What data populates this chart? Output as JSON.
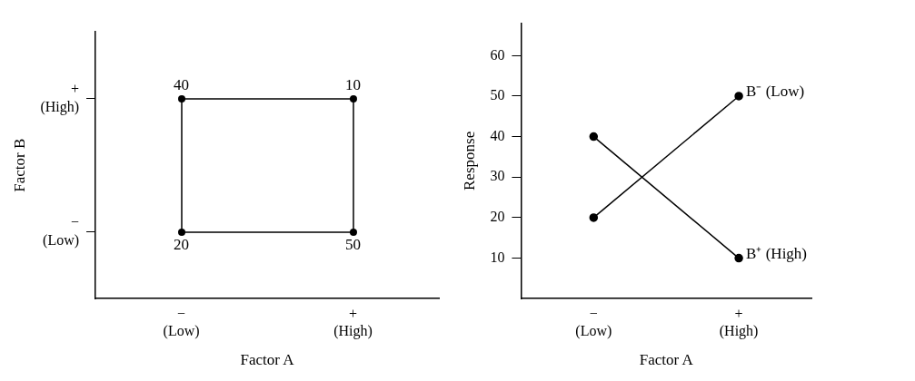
{
  "chart_data": [
    {
      "type": "other",
      "categories": [
        "− (Low)",
        "+ (High)"
      ],
      "y_categories": [
        "+ (High)",
        "− (Low)"
      ],
      "annotations": [
        {
          "text": "40",
          "x": "− (Low)",
          "y": "+ (High)"
        },
        {
          "text": "10",
          "x": "+ (High)",
          "y": "+ (High)"
        },
        {
          "text": "20",
          "x": "− (Low)",
          "y": "− (Low)"
        },
        {
          "text": "50",
          "x": "+ (High)",
          "y": "− (Low)"
        }
      ],
      "xlabel": "Factor A",
      "ylabel": "Factor B"
    },
    {
      "type": "line",
      "categories": [
        "− (Low)",
        "+ (High)"
      ],
      "series": [
        {
          "name": "B⁻ (Low)",
          "color": "#000000",
          "values": [
            20,
            50
          ]
        },
        {
          "name": "B⁺ (High)",
          "color": "#000000",
          "values": [
            40,
            10
          ]
        }
      ],
      "ylim": [
        0,
        68
      ],
      "yticks": [
        10,
        20,
        30,
        40,
        50,
        60
      ],
      "xlabel": "Factor A",
      "ylabel": "Response",
      "marker": "circle",
      "line_style": "solid"
    }
  ]
}
